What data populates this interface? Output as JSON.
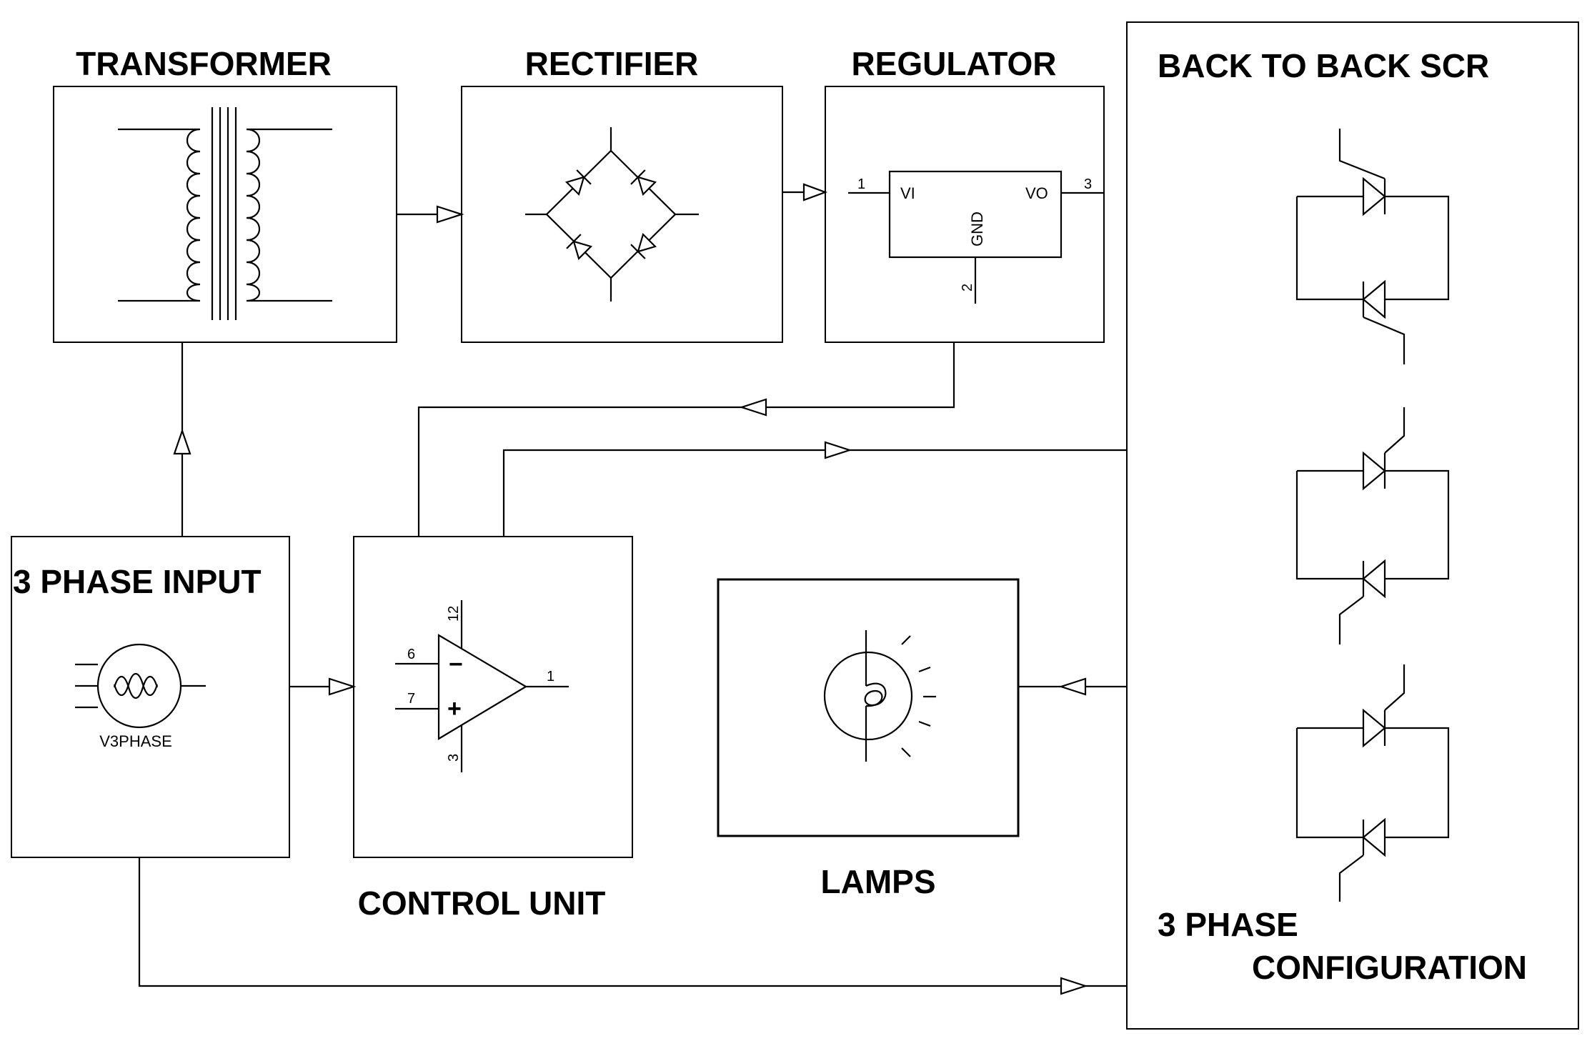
{
  "blocks": {
    "transformer": {
      "title": "TRANSFORMER"
    },
    "rectifier": {
      "title": "RECTIFIER"
    },
    "regulator": {
      "title": "REGULATOR",
      "vi_label": "VI",
      "vo_label": "VO",
      "gnd_label": "GND",
      "pin_in": "1",
      "pin_out": "3",
      "pin_gnd": "2"
    },
    "scr": {
      "title": "BACK TO BACK SCR",
      "footer_line1": "3 PHASE",
      "footer_line2": "CONFIGURATION"
    },
    "three_phase_input": {
      "title": "3 PHASE INPUT",
      "source_label": "V3PHASE"
    },
    "control_unit": {
      "title": "CONTROL UNIT",
      "pin_inv": "6",
      "pin_noninv": "7",
      "pin_out": "1",
      "pin_vplus": "12",
      "pin_vminus": "3",
      "minus_sign": "−",
      "plus_sign": "+"
    },
    "lamps": {
      "title": "LAMPS"
    }
  }
}
